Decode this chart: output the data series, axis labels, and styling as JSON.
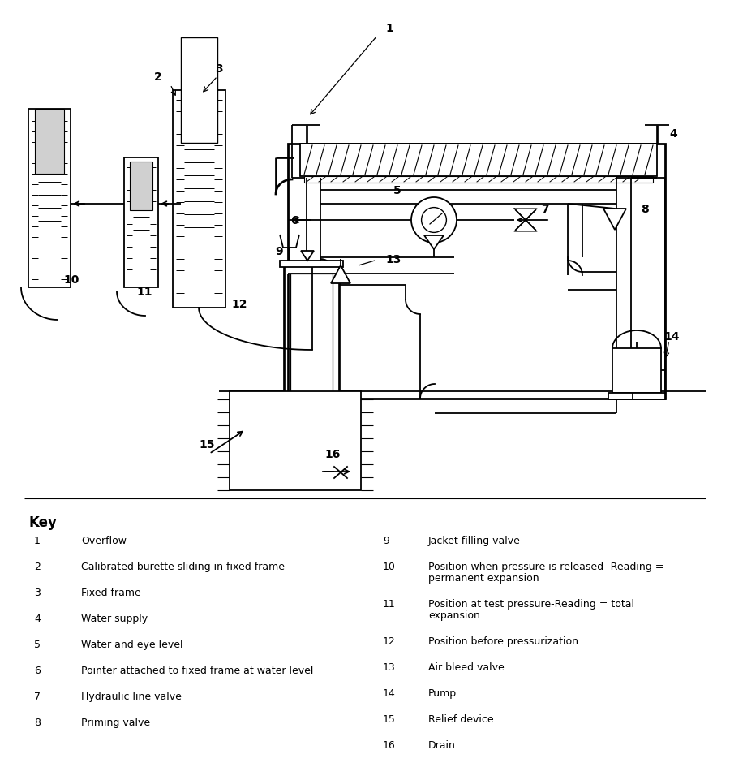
{
  "bg_color": "#ffffff",
  "key_title": "Key",
  "key_items_left": [
    [
      "1",
      "Overflow"
    ],
    [
      "2",
      "Calibrated burette sliding in fixed frame"
    ],
    [
      "3",
      "Fixed frame"
    ],
    [
      "4",
      "Water supply"
    ],
    [
      "5",
      "Water and eye level"
    ],
    [
      "6",
      "Pointer attached to fixed frame at water level"
    ],
    [
      "7",
      "Hydraulic line valve"
    ],
    [
      "8",
      "Priming valve"
    ]
  ],
  "key_items_right": [
    [
      "9",
      "Jacket filling valve"
    ],
    [
      "10",
      "Position when pressure is released -Reading =\npermanent expansion"
    ],
    [
      "11",
      "Position at test pressure-Reading = total\nexpansion"
    ],
    [
      "12",
      "Position before pressurization"
    ],
    [
      "13",
      "Air bleed valve"
    ],
    [
      "14",
      "Pump"
    ],
    [
      "15",
      "Relief device"
    ],
    [
      "16",
      "Drain"
    ]
  ]
}
